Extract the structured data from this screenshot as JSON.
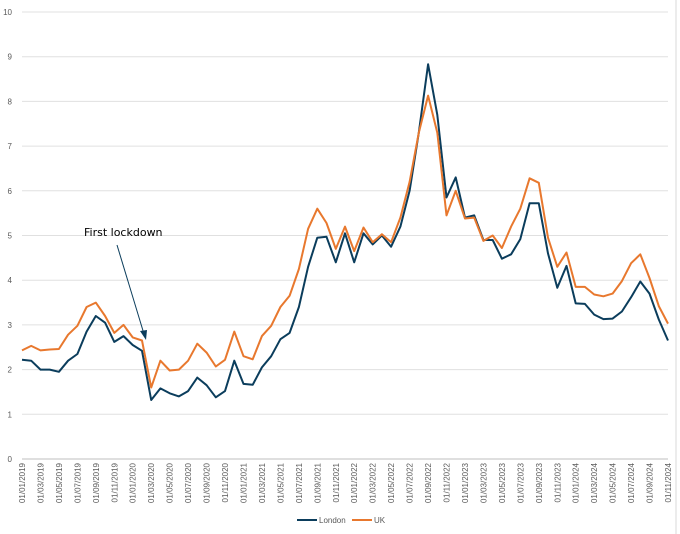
{
  "chart_data": {
    "type": "line",
    "title": "",
    "xlabel": "",
    "ylabel": "",
    "ylim": [
      0,
      10
    ],
    "y_ticks": [
      0,
      1,
      2,
      3,
      4,
      5,
      6,
      7,
      8,
      9,
      10
    ],
    "grid": true,
    "legend_position": "bottom",
    "x": [
      "01/01/2019",
      "01/02/2019",
      "01/03/2019",
      "01/04/2019",
      "01/05/2019",
      "01/06/2019",
      "01/07/2019",
      "01/08/2019",
      "01/09/2019",
      "01/10/2019",
      "01/11/2019",
      "01/12/2019",
      "01/01/2020",
      "01/02/2020",
      "01/03/2020",
      "01/04/2020",
      "01/05/2020",
      "01/06/2020",
      "01/07/2020",
      "01/08/2020",
      "01/09/2020",
      "01/10/2020",
      "01/11/2020",
      "01/12/2020",
      "01/01/2021",
      "01/02/2021",
      "01/03/2021",
      "01/04/2021",
      "01/05/2021",
      "01/06/2021",
      "01/07/2021",
      "01/08/2021",
      "01/09/2021",
      "01/10/2021",
      "01/11/2021",
      "01/12/2021",
      "01/01/2022",
      "01/02/2022",
      "01/03/2022",
      "01/04/2022",
      "01/05/2022",
      "01/06/2022",
      "01/07/2022",
      "01/08/2022",
      "01/09/2022",
      "01/10/2022",
      "01/11/2022",
      "01/12/2022",
      "01/01/2023",
      "01/02/2023",
      "01/03/2023",
      "01/04/2023",
      "01/05/2023",
      "01/06/2023",
      "01/07/2023",
      "01/08/2023",
      "01/09/2023",
      "01/10/2023",
      "01/11/2023",
      "01/12/2023",
      "01/01/2024",
      "01/02/2024",
      "01/03/2024",
      "01/04/2024",
      "01/05/2024",
      "01/06/2024",
      "01/07/2024",
      "01/08/2024",
      "01/09/2024",
      "01/10/2024",
      "01/11/2024"
    ],
    "x_tick_labels": [
      "01/01/2019",
      "01/03/2019",
      "01/05/2019",
      "01/07/2019",
      "01/09/2019",
      "01/11/2019",
      "01/01/2020",
      "01/03/2020",
      "01/05/2020",
      "01/07/2020",
      "01/09/2020",
      "01/11/2020",
      "01/01/2021",
      "01/03/2021",
      "01/05/2021",
      "01/07/2021",
      "01/09/2021",
      "01/11/2021",
      "01/01/2022",
      "01/03/2022",
      "01/05/2022",
      "01/07/2022",
      "01/09/2022",
      "01/11/2022",
      "01/01/2023",
      "01/03/2023",
      "01/05/2023",
      "01/07/2023",
      "01/09/2023",
      "01/11/2023",
      "01/01/2024",
      "01/03/2024",
      "01/05/2024",
      "01/07/2024",
      "01/09/2024",
      "01/11/2024"
    ],
    "series": [
      {
        "name": "London",
        "color": "#0b3d5c",
        "values": [
          2.22,
          2.2,
          2.0,
          2.0,
          1.95,
          2.2,
          2.35,
          2.85,
          3.2,
          3.05,
          2.62,
          2.75,
          2.55,
          2.42,
          1.32,
          1.58,
          1.47,
          1.4,
          1.52,
          1.82,
          1.65,
          1.38,
          1.52,
          2.2,
          1.68,
          1.66,
          2.05,
          2.3,
          2.68,
          2.82,
          3.4,
          4.3,
          4.95,
          4.97,
          4.4,
          5.05,
          4.4,
          5.05,
          4.8,
          5.0,
          4.75,
          5.2,
          6.0,
          7.3,
          8.83,
          7.7,
          5.85,
          6.3,
          5.4,
          5.45,
          4.9,
          4.9,
          4.48,
          4.58,
          4.92,
          5.72,
          5.72,
          4.6,
          3.83,
          4.32,
          3.48,
          3.47,
          3.23,
          3.13,
          3.14,
          3.3,
          3.62,
          3.97,
          3.7,
          3.12,
          2.65
        ]
      },
      {
        "name": "UK",
        "color": "#e8782e",
        "values": [
          2.43,
          2.53,
          2.43,
          2.45,
          2.46,
          2.78,
          2.98,
          3.4,
          3.5,
          3.2,
          2.82,
          3.0,
          2.72,
          2.65,
          1.6,
          2.2,
          1.98,
          2.0,
          2.2,
          2.58,
          2.38,
          2.07,
          2.22,
          2.85,
          2.3,
          2.23,
          2.75,
          2.98,
          3.4,
          3.65,
          4.25,
          5.15,
          5.6,
          5.28,
          4.7,
          5.2,
          4.65,
          5.18,
          4.85,
          5.03,
          4.85,
          5.4,
          6.2,
          7.3,
          8.13,
          7.3,
          5.45,
          6.0,
          5.38,
          5.4,
          4.88,
          5.0,
          4.72,
          5.2,
          5.6,
          6.28,
          6.18,
          4.95,
          4.3,
          4.62,
          3.85,
          3.85,
          3.68,
          3.64,
          3.7,
          3.98,
          4.38,
          4.58,
          4.05,
          3.42,
          3.03
        ]
      }
    ],
    "annotations": [
      {
        "text": "First lockdown",
        "points_to": "01/03/2020"
      }
    ]
  }
}
